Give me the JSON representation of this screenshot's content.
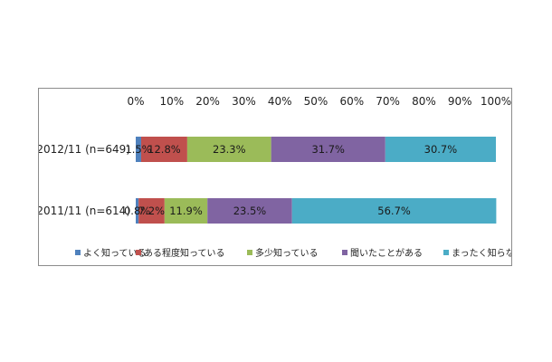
{
  "chart_data": {
    "type": "bar",
    "orientation": "horizontal",
    "stacked": true,
    "percent_stacked": true,
    "categories": [
      "2012/11 (n=649)",
      "2011/11 (n=614)"
    ],
    "series": [
      {
        "name": "よく知っている",
        "values": [
          1.5,
          0.8
        ],
        "color": "#4F81BD",
        "labels": [
          "1.5%",
          "0.8%"
        ]
      },
      {
        "name": "ある程度知っている",
        "values": [
          12.8,
          7.2
        ],
        "color": "#C0504D",
        "labels": [
          "12.8%",
          "7.2%"
        ]
      },
      {
        "name": "多少知っている",
        "values": [
          23.3,
          11.9
        ],
        "color": "#9BBB59",
        "labels": [
          "23.3%",
          "11.9%"
        ]
      },
      {
        "name": "聞いたことがある",
        "values": [
          31.7,
          23.5
        ],
        "color": "#8064A2",
        "labels": [
          "31.7%",
          "23.5%"
        ]
      },
      {
        "name": "まったく知らない",
        "values": [
          30.7,
          56.7
        ],
        "color": "#4BACC6",
        "labels": [
          "30.7%",
          "56.7%"
        ]
      }
    ],
    "xlim": [
      0,
      100
    ],
    "x_ticks": [
      "0%",
      "10%",
      "20%",
      "30%",
      "40%",
      "50%",
      "60%",
      "70%",
      "80%",
      "90%",
      "100%"
    ],
    "x_axis_position": "top",
    "legend_position": "bottom",
    "grid": false
  }
}
